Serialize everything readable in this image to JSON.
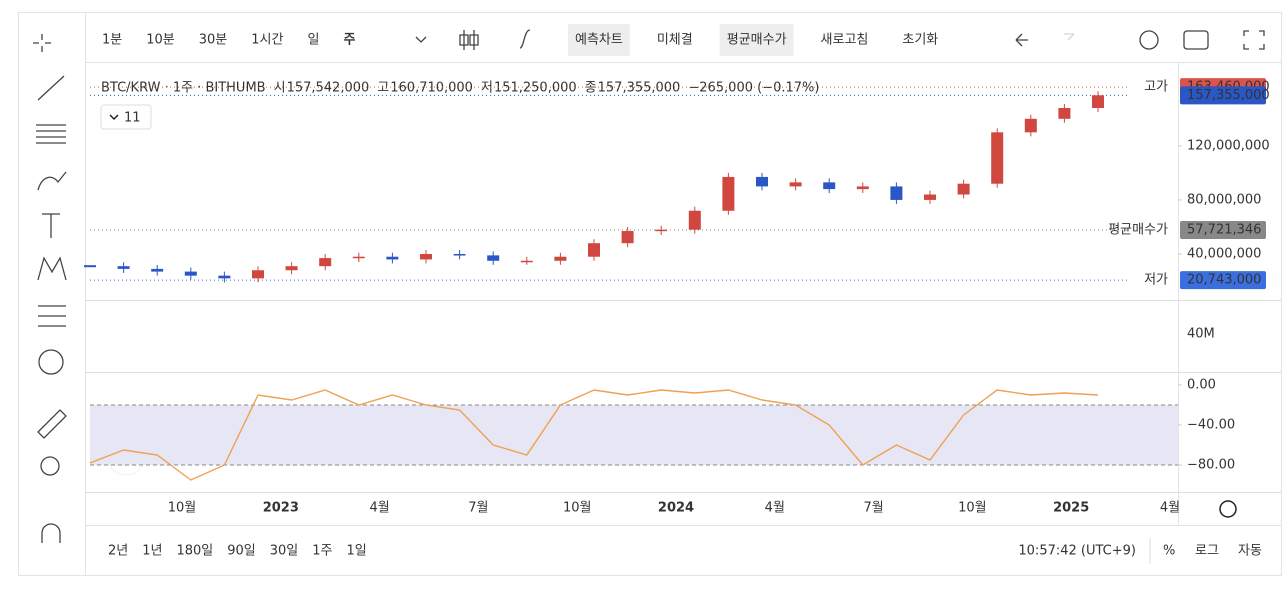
{
  "toolbar": {
    "intervals": [
      "1분",
      "10분",
      "30분",
      "1시간",
      "일",
      "주"
    ],
    "buttons": [
      "예측차트",
      "미체결",
      "평균매수가",
      "새로고침",
      "초기화"
    ]
  },
  "legend": {
    "symbol": "BTC/KRW · 1주 · BITHUMB",
    "open_label": "시",
    "open": "157,542,000",
    "high_label": "고",
    "high": "160,710,000",
    "low_label": "저",
    "low": "151,250,000",
    "close_label": "종",
    "close": "157,355,000",
    "change": "−265,000 (−0.17%)",
    "indicators": "11"
  },
  "chart_data": {
    "type": "candlestick",
    "price": {
      "name": "BTC/KRW",
      "up_color": "#d0473f",
      "down_color": "#2a56c6",
      "values": [
        31000000,
        29000000,
        27000000,
        24000000,
        22000000,
        28000000,
        31000000,
        37000000,
        38000000,
        36000000,
        40000000,
        39000000,
        35000000,
        35000000,
        38000000,
        48000000,
        57000000,
        58000000,
        72000000,
        97000000,
        90000000,
        93000000,
        88000000,
        90000000,
        80000000,
        84000000,
        92000000,
        130000000,
        140000000,
        148000000,
        157355000
      ]
    },
    "ylim": [
      6000000,
      182000000
    ],
    "yticks": [
      {
        "value": 40000000,
        "label": "40,000,000"
      },
      {
        "value": 80000000,
        "label": "80,000,000"
      },
      {
        "value": 120000000,
        "label": "120,000,000"
      }
    ],
    "markers": [
      {
        "label": "고가",
        "value": 163460000,
        "value_label": "163,460,000",
        "color": "#d9534f"
      },
      {
        "value": 157355000,
        "value_label": "157,355,000",
        "color": "#2a56c6"
      },
      {
        "label": "평균매수가",
        "value": 57721346,
        "value_label": "57,721,346",
        "color": "#888888"
      },
      {
        "label": "저가",
        "value": 20743000,
        "value_label": "20,743,000",
        "color": "#3b6fe0"
      }
    ],
    "volume_ticks": [
      "40M"
    ],
    "oscillator": {
      "color": "#f0a050",
      "ylim": [
        -107,
        13
      ],
      "yticks": [
        {
          "value": 0,
          "label": "0.00"
        },
        {
          "value": -40,
          "label": "−40.00"
        },
        {
          "value": -80,
          "label": "−80.00"
        }
      ],
      "band": [
        -80,
        -20
      ],
      "values": [
        -78,
        -65,
        -70,
        -95,
        -80,
        -10,
        -15,
        -5,
        -20,
        -10,
        -20,
        -25,
        -60,
        -70,
        -20,
        -5,
        -10,
        -5,
        -8,
        -5,
        -15,
        -20,
        -40,
        -80,
        -60,
        -75,
        -30,
        -5,
        -10,
        -8,
        -10
      ]
    },
    "time_labels": [
      "10월",
      "2023",
      "4월",
      "7월",
      "10월",
      "2024",
      "4월",
      "7월",
      "10월",
      "2025",
      "4월"
    ],
    "bold_labels": [
      "2023",
      "2024",
      "2025"
    ]
  },
  "footer": {
    "ranges": [
      "2년",
      "1년",
      "180일",
      "90일",
      "30일",
      "1주",
      "1일"
    ],
    "time": "10:57:42 (UTC+9)",
    "percent": "%",
    "log": "로그",
    "auto": "자동"
  }
}
